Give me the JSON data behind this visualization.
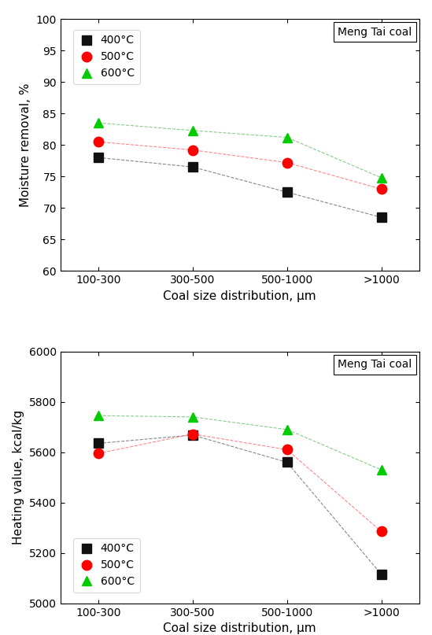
{
  "categories": [
    "100-300",
    "300-500",
    "500-1000",
    ">1000"
  ],
  "top": {
    "ylabel": "Moisture removal, %",
    "xlabel": "Coal size distribution, μm",
    "ylim": [
      60,
      100
    ],
    "yticks": [
      60,
      65,
      70,
      75,
      80,
      85,
      90,
      95,
      100
    ],
    "annotation": "Meng Tai coal",
    "series": [
      {
        "label": "400°C",
        "color": "#111111",
        "line_color": "#888888",
        "marker": "s",
        "values": [
          78.0,
          76.5,
          72.5,
          68.5
        ]
      },
      {
        "label": "500°C",
        "color": "#ff0000",
        "line_color": "#ff8888",
        "marker": "o",
        "values": [
          80.5,
          79.2,
          77.2,
          73.0
        ]
      },
      {
        "label": "600°C",
        "color": "#00cc00",
        "line_color": "#88cc88",
        "marker": "^",
        "values": [
          83.5,
          82.3,
          81.2,
          74.8
        ]
      }
    ]
  },
  "bottom": {
    "ylabel": "Heating value, kcal/kg",
    "xlabel": "Coal size distribution, μm",
    "ylim": [
      5000,
      6000
    ],
    "yticks": [
      5000,
      5200,
      5400,
      5600,
      5800,
      6000
    ],
    "annotation": "Meng Tai coal",
    "series": [
      {
        "label": "400°C",
        "color": "#111111",
        "line_color": "#888888",
        "marker": "s",
        "values": [
          5635,
          5668,
          5560,
          5115
        ]
      },
      {
        "label": "500°C",
        "color": "#ff0000",
        "line_color": "#ff8888",
        "marker": "o",
        "values": [
          5595,
          5672,
          5610,
          5285
        ]
      },
      {
        "label": "600°C",
        "color": "#00cc00",
        "line_color": "#88cc88",
        "marker": "^",
        "values": [
          5745,
          5740,
          5690,
          5530
        ]
      }
    ]
  }
}
